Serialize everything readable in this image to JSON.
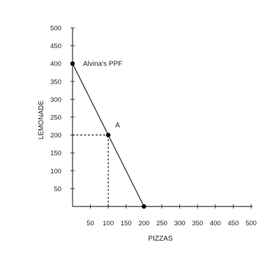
{
  "chart_data": {
    "type": "line",
    "xlabel": "PIZZAS",
    "ylabel": "LEMONADE",
    "xlim": [
      0,
      500
    ],
    "ylim": [
      0,
      500
    ],
    "x_ticks": [
      50,
      100,
      150,
      200,
      250,
      300,
      350,
      400,
      450,
      500
    ],
    "y_ticks": [
      50,
      100,
      150,
      200,
      250,
      300,
      350,
      400,
      450,
      500
    ],
    "series": [
      {
        "name": "Alvina's PPF",
        "x": [
          0,
          200
        ],
        "y": [
          400,
          0
        ]
      }
    ],
    "points": [
      {
        "x": 0,
        "y": 400
      },
      {
        "x": 100,
        "y": 200,
        "label": "A"
      },
      {
        "x": 200,
        "y": 0
      }
    ],
    "reference_lines": [
      {
        "type": "dashed",
        "from": {
          "x": 0,
          "y": 200
        },
        "to": {
          "x": 100,
          "y": 200
        }
      },
      {
        "type": "dashed",
        "from": {
          "x": 100,
          "y": 0
        },
        "to": {
          "x": 100,
          "y": 200
        }
      }
    ],
    "grid": false,
    "colors": {
      "line": "#333333",
      "point": "#000000",
      "axis": "#333333"
    }
  }
}
